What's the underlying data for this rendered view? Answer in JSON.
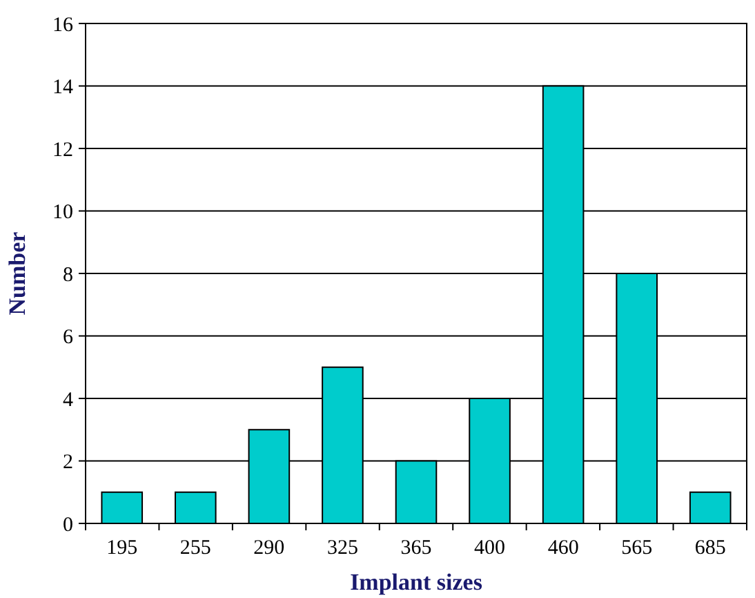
{
  "chart_data": {
    "type": "bar",
    "xlabel": "Implant sizes",
    "ylabel": "Number",
    "categories": [
      "195",
      "255",
      "290",
      "325",
      "365",
      "400",
      "460",
      "565",
      "685"
    ],
    "values": [
      1,
      1,
      3,
      5,
      2,
      4,
      14,
      8,
      1
    ],
    "color": "#00cccc",
    "ylim": [
      0,
      16
    ],
    "yticks": [
      0,
      2,
      4,
      6,
      8,
      10,
      12,
      14,
      16
    ],
    "grid": "y"
  }
}
